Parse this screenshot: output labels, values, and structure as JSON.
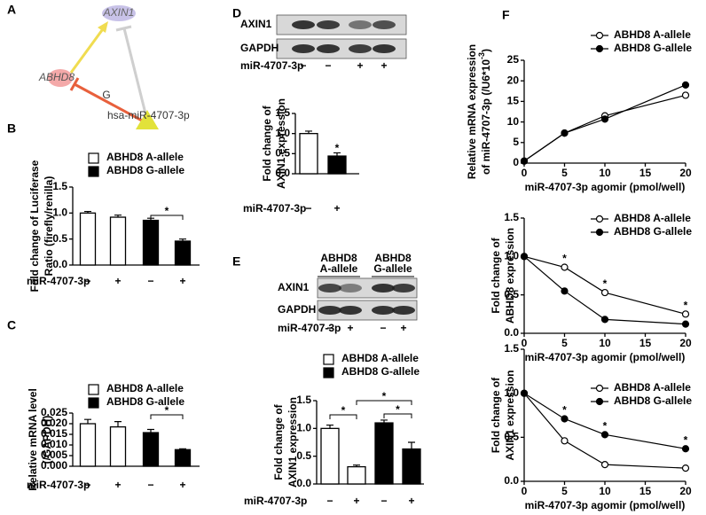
{
  "panel_letters": [
    "A",
    "B",
    "C",
    "D",
    "E",
    "F"
  ],
  "network": {
    "nodes": [
      "AXIN1",
      "ABHD8",
      "hsa-miR-4707-3p"
    ],
    "edge_label": "G"
  },
  "blots": [
    {
      "rows": [
        "AXIN1",
        "GAPDH"
      ],
      "treatment": "miR-4707-3p",
      "signs": [
        "−",
        "−",
        "+",
        "+"
      ]
    },
    {
      "groups": [
        [
          "ABHD8",
          "A-allele"
        ],
        [
          "ABHD8",
          "G-allele"
        ]
      ],
      "rows": [
        "AXIN1",
        "GAPDH"
      ],
      "treatment": "miR-4707-3p",
      "signs": [
        "−",
        "+",
        "−",
        "+"
      ]
    }
  ],
  "chart_data": [
    {
      "type": "bar",
      "ylabel": [
        "Fold change of Luciferase",
        "Ratio (firefly/renilla)"
      ],
      "xlabel": "miR-4707-3p",
      "categories": [
        "−",
        "+",
        "−",
        "+"
      ],
      "series": [
        {
          "name": "ABHD8 A-allele",
          "color": "#ffffff",
          "values": [
            1.0,
            0.92,
            null,
            null
          ],
          "errors": [
            0.03,
            0.04,
            null,
            null
          ]
        },
        {
          "name": "ABHD8 G-allele",
          "color": "#000000",
          "values": [
            null,
            null,
            0.86,
            0.46
          ],
          "errors": [
            null,
            null,
            0.04,
            0.04
          ]
        }
      ],
      "ylim": [
        0,
        1.5
      ],
      "yticks": [
        {
          "value": 0,
          "label": "0.0"
        },
        0.5,
        {
          "value": 1,
          "label": "1.0"
        },
        1.5
      ],
      "annotations": [
        "*"
      ]
    },
    {
      "type": "bar",
      "ylabel": [
        "Relative mRNA level",
        "(/GAPDH)"
      ],
      "xlabel": "miR-4707-3p",
      "categories": [
        "−",
        "+",
        "−",
        "+"
      ],
      "series": [
        {
          "name": "ABHD8 A-allele",
          "color": "#ffffff",
          "values": [
            0.02,
            0.0185,
            null,
            null
          ],
          "errors": [
            0.002,
            0.0025,
            null,
            null
          ]
        },
        {
          "name": "ABHD8 G-allele",
          "color": "#000000",
          "values": [
            null,
            null,
            0.0158,
            0.0078
          ],
          "errors": [
            null,
            null,
            0.0015,
            0.0004
          ]
        }
      ],
      "ylim": [
        0,
        0.025
      ],
      "yticks": [
        {
          "value": 0,
          "label": "0.000"
        },
        0.005,
        {
          "value": 0.01,
          "label": "0.010"
        },
        0.015,
        {
          "value": 0.02,
          "label": "0.020"
        },
        0.025
      ],
      "annotations": [
        "*"
      ]
    },
    {
      "type": "bar",
      "ylabel": [
        "Fold change of",
        "AXIN1 expression"
      ],
      "xlabel": "miR-4707-3p",
      "categories": [
        "−",
        "+"
      ],
      "values": [
        1.0,
        0.44
      ],
      "errors": [
        0.06,
        0.08
      ],
      "colors": [
        "#ffffff",
        "#000000"
      ],
      "ylim": [
        0,
        1.5
      ],
      "yticks": [
        {
          "value": 0,
          "label": "0.0"
        },
        0.5,
        {
          "value": 1,
          "label": "1.0"
        },
        1.5
      ],
      "annotations": [
        "*"
      ]
    },
    {
      "type": "bar",
      "ylabel": [
        "Fold change of",
        "AXIN1 expression"
      ],
      "xlabel": "miR-4707-3p",
      "categories": [
        "−",
        "+",
        "−",
        "+"
      ],
      "series": [
        {
          "name": "ABHD8 A-allele",
          "color": "#ffffff",
          "values": [
            1.0,
            0.31,
            null,
            null
          ],
          "errors": [
            0.06,
            0.03,
            null,
            null
          ]
        },
        {
          "name": "ABHD8 G-allele",
          "color": "#000000",
          "values": [
            null,
            null,
            1.1,
            0.63
          ],
          "errors": [
            null,
            null,
            0.05,
            0.12
          ]
        }
      ],
      "ylim": [
        0,
        1.5
      ],
      "yticks": [
        {
          "value": 0,
          "label": "0.0"
        },
        0.5,
        {
          "value": 1,
          "label": "1.0"
        },
        1.5
      ],
      "annotations": [
        "*",
        "*",
        "*"
      ]
    },
    {
      "type": "line",
      "ylabel": [
        "Relative mRNA expression",
        "of miR-4707-3p (/U6*10"
      ],
      "ylabel_sup": "-3",
      "ylabel_end": ")",
      "xlabel": "miR-4707-3p agomir (pmol/well)",
      "x": [
        0,
        5,
        10,
        20
      ],
      "series": [
        {
          "name": "ABHD8 A-allele",
          "marker": "open",
          "color": "#000000",
          "values": [
            0.5,
            7.3,
            11.5,
            16.5
          ]
        },
        {
          "name": "ABHD8 G-allele",
          "marker": "filled",
          "color": "#000000",
          "values": [
            0.5,
            7.3,
            10.7,
            19.0
          ]
        }
      ],
      "xlim": [
        0,
        20
      ],
      "xticks": [
        0,
        5,
        10,
        15,
        20
      ],
      "ylim": [
        0,
        25
      ],
      "yticks": [
        0,
        5,
        10,
        15,
        20,
        25
      ]
    },
    {
      "type": "line",
      "ylabel": [
        "Fold change of",
        "ABHD8 expression"
      ],
      "xlabel": "miR-4707-3p agomir (pmol/well)",
      "x": [
        0,
        5,
        10,
        20
      ],
      "series": [
        {
          "name": "ABHD8 A-allele",
          "marker": "open",
          "color": "#000000",
          "values": [
            1.0,
            0.86,
            0.53,
            0.25
          ]
        },
        {
          "name": "ABHD8 G-allele",
          "marker": "filled",
          "color": "#000000",
          "values": [
            1.0,
            0.55,
            0.18,
            0.12
          ]
        }
      ],
      "xlim": [
        0,
        20
      ],
      "xticks": [
        0,
        5,
        10,
        15,
        20
      ],
      "ylim": [
        0,
        1.5
      ],
      "yticks": [
        {
          "value": 0,
          "label": "0.0"
        },
        0.5,
        {
          "value": 1,
          "label": "1.0"
        },
        1.5
      ],
      "annotations": [
        "*",
        "*",
        "*"
      ]
    },
    {
      "type": "line",
      "ylabel": [
        "Fold change of",
        "AXIN1 expression"
      ],
      "xlabel": "miR-4707-3p agomir (pmol/well)",
      "x": [
        0,
        5,
        10,
        20
      ],
      "series": [
        {
          "name": "ABHD8 A-allele",
          "marker": "open",
          "color": "#000000",
          "values": [
            1.0,
            0.46,
            0.19,
            0.15
          ]
        },
        {
          "name": "ABHD8 G-allele",
          "marker": "filled",
          "color": "#000000",
          "values": [
            1.0,
            0.71,
            0.53,
            0.37
          ]
        }
      ],
      "xlim": [
        0,
        20
      ],
      "xticks": [
        0,
        5,
        10,
        15,
        20
      ],
      "ylim": [
        0,
        1.5
      ],
      "yticks": [
        {
          "value": 0,
          "label": "0.0"
        },
        0.5,
        {
          "value": 1,
          "label": "1.0"
        },
        1.5
      ],
      "annotations": [
        "*",
        "*",
        "*"
      ]
    }
  ]
}
